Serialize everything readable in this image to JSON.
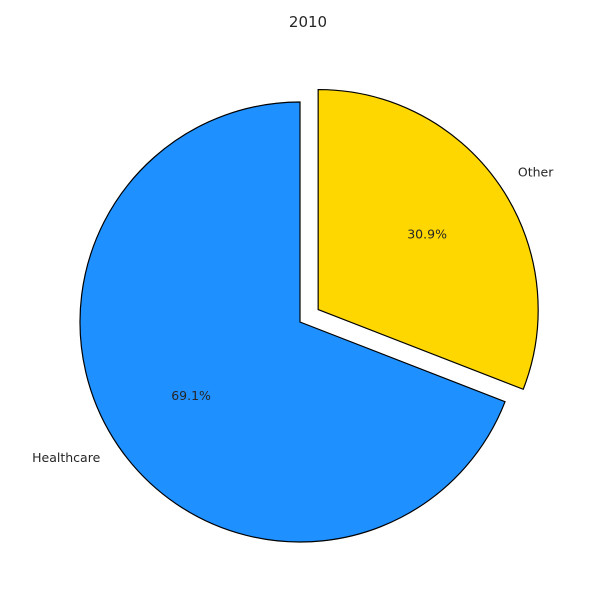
{
  "chart_data": {
    "type": "pie",
    "title": "2010",
    "slices": [
      {
        "label": "Healthcare",
        "value": 69.1,
        "pct_label": "69.1%",
        "color": "#1E90FF",
        "exploded": false
      },
      {
        "label": "Other",
        "value": 30.9,
        "pct_label": "30.9%",
        "color": "#FFD700",
        "exploded": true
      }
    ],
    "edge_color": "#000000",
    "start_angle_deg": 90,
    "direction": "counterclockwise"
  }
}
